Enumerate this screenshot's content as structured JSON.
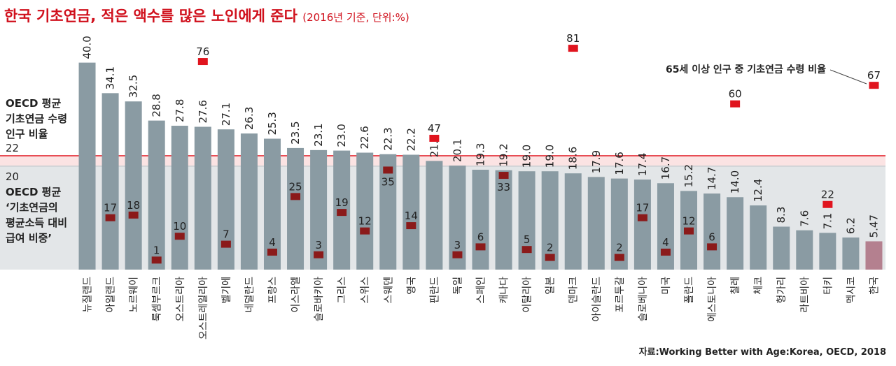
{
  "chart_data": {
    "type": "bar",
    "title": "한국 기초연금, 적은 액수를 많은 노인에게 준다",
    "subtitle": "(2016년 기준, 단위:%)",
    "source": "자료:Working Better with Age:Korea, OECD, 2018",
    "categories": [
      "뉴질랜드",
      "아일랜드",
      "노르웨이",
      "룩셈부르크",
      "오스트리아",
      "오스트레일리아",
      "벨기에",
      "네덜란드",
      "프랑스",
      "이스라엘",
      "슬로바키아",
      "그리스",
      "스위스",
      "스웨덴",
      "영국",
      "핀란드",
      "독일",
      "스페인",
      "캐나다",
      "이탈리아",
      "일본",
      "덴마크",
      "아이슬란드",
      "포르투갈",
      "슬로베니아",
      "미국",
      "폴란드",
      "에스토니아",
      "칠레",
      "체코",
      "헝가리",
      "라트비아",
      "터키",
      "멕시코",
      "한국"
    ],
    "ylim": [
      0,
      44
    ],
    "y2lim": [
      -2.6,
      83.4
    ],
    "series": [
      {
        "name": "기초연금의 평균소득 대비 급여 비중",
        "colors": [
          "#8a9ba3",
          "#8a9ba3",
          "#8a9ba3",
          "#8a9ba3",
          "#8a9ba3",
          "#8a9ba3",
          "#8a9ba3",
          "#8a9ba3",
          "#8a9ba3",
          "#8a9ba3",
          "#8a9ba3",
          "#8a9ba3",
          "#8a9ba3",
          "#8a9ba3",
          "#8a9ba3",
          "#8a9ba3",
          "#8a9ba3",
          "#8a9ba3",
          "#8a9ba3",
          "#8a9ba3",
          "#8a9ba3",
          "#8a9ba3",
          "#8a9ba3",
          "#8a9ba3",
          "#8a9ba3",
          "#8a9ba3",
          "#8a9ba3",
          "#8a9ba3",
          "#8a9ba3",
          "#8a9ba3",
          "#8a9ba3",
          "#8a9ba3",
          "#8a9ba3",
          "#8a9ba3",
          "#b4808f"
        ],
        "values": [
          40.0,
          34.1,
          32.5,
          28.8,
          27.8,
          27.6,
          27.1,
          26.3,
          25.3,
          23.5,
          23.1,
          23.0,
          22.6,
          22.3,
          22.2,
          21.0,
          20.1,
          19.3,
          19.2,
          19.0,
          19.0,
          18.6,
          17.9,
          17.6,
          17.4,
          16.7,
          15.2,
          14.7,
          14.0,
          12.4,
          8.3,
          7.6,
          7.1,
          6.2,
          5.47
        ],
        "value_labels": [
          "40.0",
          "34.1",
          "32.5",
          "28.8",
          "27.8",
          "27.6",
          "27.1",
          "26.3",
          "25.3",
          "23.5",
          "23.1",
          "23.0",
          "22.6",
          "22.3",
          "22.2",
          "21.0",
          "20.1",
          "19.3",
          "19.2",
          "19.0",
          "19.0",
          "18.6",
          "17.9",
          "17.6",
          "17.4",
          "16.7",
          "15.2",
          "14.7",
          "14.0",
          "12.4",
          "8.3",
          "7.6",
          "7.1",
          "6.2",
          "5.47"
        ]
      },
      {
        "name": "65세 이상 인구 중 기초연금 수령 비율",
        "axis": "y2",
        "color": "#e0141e",
        "color_inside": "#8b1a1a",
        "values": [
          null,
          17,
          18,
          1,
          10,
          76,
          7,
          null,
          4,
          25,
          3,
          19,
          12,
          35,
          14,
          47,
          3,
          6,
          33,
          5,
          2,
          81,
          null,
          2,
          17,
          4,
          12,
          6,
          60,
          null,
          null,
          null,
          22,
          null,
          67
        ]
      }
    ],
    "reference_lines": [
      {
        "value": 22,
        "color": "#e0141e",
        "band_color": "#fbe3e3",
        "label": [
          "OECD 평균",
          "기초연금 수령",
          "인구 비율"
        ]
      },
      {
        "value": 20,
        "color": "#c9ced1",
        "band_color": "#e3e6e8",
        "label": [
          "OECD 평균",
          "‘기초연금의",
          "평균소득 대비",
          "급여 비중’"
        ]
      }
    ]
  }
}
